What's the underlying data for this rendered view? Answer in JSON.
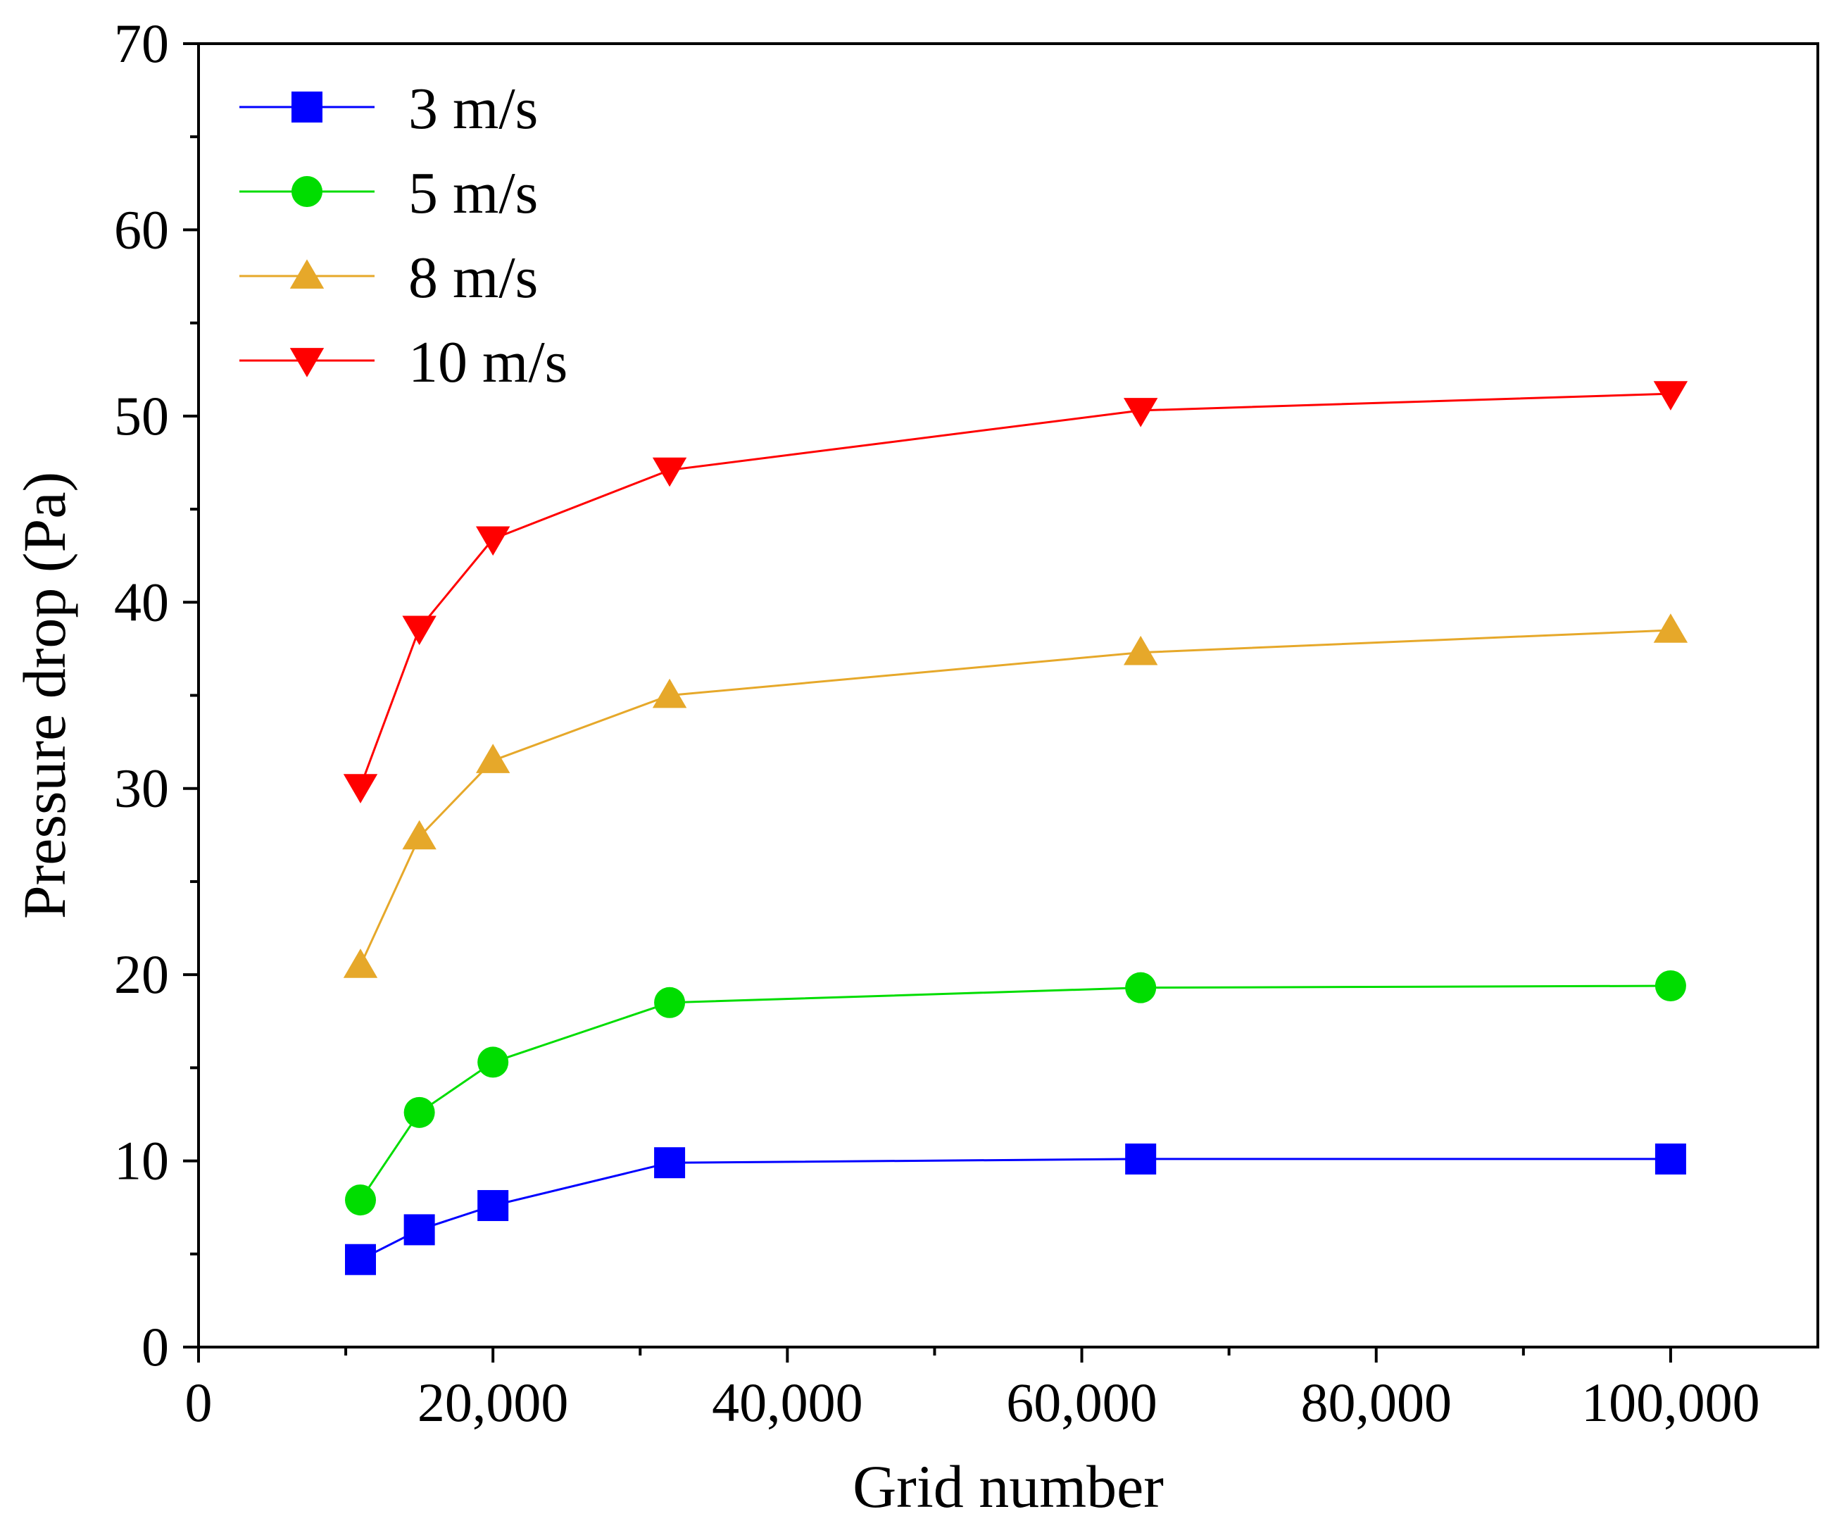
{
  "chart_data": {
    "type": "line",
    "title": "",
    "xlabel": "Grid number",
    "ylabel": "Pressure drop (Pa)",
    "xlim": [
      0,
      110000
    ],
    "ylim": [
      0,
      70
    ],
    "x_ticks": [
      0,
      20000,
      40000,
      60000,
      80000,
      100000
    ],
    "x_tick_labels": [
      "0",
      "20,000",
      "40,000",
      "60,000",
      "80,000",
      "100,000"
    ],
    "y_ticks": [
      0,
      10,
      20,
      30,
      40,
      50,
      60,
      70
    ],
    "y_tick_labels": [
      "0",
      "10",
      "20",
      "30",
      "40",
      "50",
      "60",
      "70"
    ],
    "grid": false,
    "legend_position": "top-left",
    "x": [
      11000,
      15000,
      20000,
      32000,
      64000,
      100000
    ],
    "series": [
      {
        "name": "3 m/s",
        "color": "#0000ff",
        "marker": "square",
        "values": [
          4.7,
          6.3,
          7.6,
          9.9,
          10.1,
          10.1
        ]
      },
      {
        "name": "5 m/s",
        "color": "#00dd00",
        "marker": "circle",
        "values": [
          7.9,
          12.6,
          15.3,
          18.5,
          19.3,
          19.4
        ]
      },
      {
        "name": "8 m/s",
        "color": "#e6a82a",
        "marker": "triangle-up",
        "values": [
          20.5,
          27.4,
          31.5,
          35.0,
          37.3,
          38.5
        ]
      },
      {
        "name": "10 m/s",
        "color": "#ff0000",
        "marker": "triangle-down",
        "values": [
          30.1,
          38.6,
          43.4,
          47.1,
          50.3,
          51.2
        ]
      }
    ]
  }
}
